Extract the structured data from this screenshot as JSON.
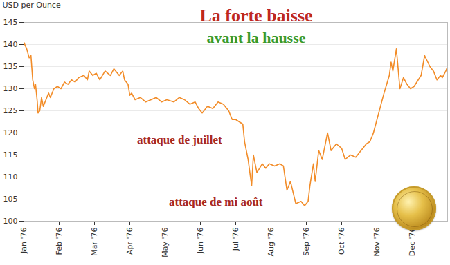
{
  "chart_data": {
    "type": "line",
    "title": "La forte baisse",
    "subtitle": "avant la hausse",
    "y_label": "USD per Ounce",
    "annotations": [
      "attaque de juillet",
      "attaque de mi août"
    ],
    "color": "#f28c28",
    "grid": true,
    "xlim": [
      0,
      12
    ],
    "ylim": [
      100,
      145
    ],
    "xticks": [
      {
        "value": 0,
        "label": "Jan '76"
      },
      {
        "value": 1,
        "label": "Feb '76"
      },
      {
        "value": 2,
        "label": "Mar '76"
      },
      {
        "value": 3,
        "label": "Apr '76"
      },
      {
        "value": 4,
        "label": "May '76"
      },
      {
        "value": 5,
        "label": "Jun '76"
      },
      {
        "value": 6,
        "label": "Jul '76"
      },
      {
        "value": 7,
        "label": "Aug '76"
      },
      {
        "value": 8,
        "label": "Sep '76"
      },
      {
        "value": 9,
        "label": "Oct '76"
      },
      {
        "value": 10,
        "label": "Nov '76"
      },
      {
        "value": 11,
        "label": "Dec '76"
      }
    ],
    "yticks": [
      100,
      105,
      110,
      115,
      120,
      125,
      130,
      135,
      140,
      145
    ],
    "x": [
      0,
      0.08,
      0.15,
      0.2,
      0.25,
      0.3,
      0.33,
      0.38,
      0.4,
      0.45,
      0.5,
      0.55,
      0.6,
      0.7,
      0.75,
      0.85,
      0.95,
      1.05,
      1.15,
      1.25,
      1.35,
      1.45,
      1.55,
      1.7,
      1.8,
      1.85,
      1.95,
      2.05,
      2.15,
      2.3,
      2.45,
      2.55,
      2.7,
      2.8,
      2.85,
      2.95,
      3.0,
      3.05,
      3.15,
      3.3,
      3.45,
      3.6,
      3.75,
      3.9,
      4.05,
      4.25,
      4.4,
      4.55,
      4.7,
      4.85,
      4.95,
      5.05,
      5.2,
      5.35,
      5.5,
      5.65,
      5.8,
      5.9,
      6.0,
      6.1,
      6.2,
      6.25,
      6.35,
      6.45,
      6.5,
      6.6,
      6.75,
      6.85,
      6.95,
      7.1,
      7.25,
      7.35,
      7.45,
      7.55,
      7.7,
      7.85,
      7.95,
      8.05,
      8.1,
      8.2,
      8.25,
      8.35,
      8.45,
      8.55,
      8.6,
      8.7,
      8.85,
      9.0,
      9.1,
      9.25,
      9.4,
      9.55,
      9.7,
      9.8,
      9.9,
      10.0,
      10.1,
      10.2,
      10.35,
      10.4,
      10.45,
      10.55,
      10.65,
      10.75,
      10.85,
      10.95,
      11.05,
      11.25,
      11.35,
      11.5,
      11.6,
      11.7,
      11.8,
      11.85,
      11.95,
      12.0
    ],
    "values": [
      140.5,
      139,
      137,
      137.5,
      132,
      130,
      131,
      127,
      124.5,
      125,
      128,
      126,
      127,
      129,
      128,
      130,
      130.5,
      130,
      131.5,
      131,
      132,
      131.5,
      132.5,
      133,
      132,
      134,
      133,
      133.5,
      132,
      134,
      133,
      134.5,
      133,
      134,
      132,
      131,
      128.5,
      129,
      127.5,
      128,
      127,
      127.5,
      128,
      127,
      127.5,
      127,
      128,
      127.5,
      126.5,
      127,
      125.5,
      124.5,
      126,
      125.5,
      127,
      126.5,
      125,
      123,
      123,
      122.5,
      122,
      118,
      114,
      108,
      115,
      111,
      113,
      112,
      113,
      112.5,
      113,
      112.5,
      107,
      109,
      104,
      104.5,
      103.5,
      104.5,
      108,
      113,
      109,
      116,
      114,
      118,
      120,
      116,
      117.5,
      116.5,
      114,
      115,
      114.5,
      116,
      117.5,
      118,
      120,
      123,
      126,
      129,
      133,
      136,
      134,
      139,
      130,
      132.5,
      131,
      130,
      130.5,
      133,
      137.5,
      135,
      134,
      132,
      133,
      132.5,
      134,
      135
    ]
  }
}
